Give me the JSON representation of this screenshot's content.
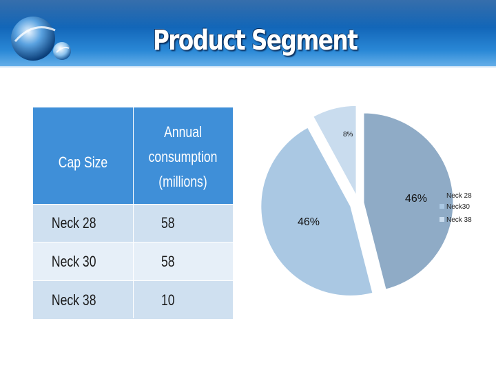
{
  "title": "Product Segment",
  "table": {
    "headers": [
      "Cap Size",
      "Annual consumption (millions)"
    ],
    "rows": [
      [
        "Neck 28",
        "58"
      ],
      [
        "Neck 30",
        "58"
      ],
      [
        "Neck 38",
        "10"
      ]
    ]
  },
  "chart_data": {
    "type": "pie",
    "categories": [
      "Neck 28",
      "Neck30",
      "Neck 38"
    ],
    "values": [
      58,
      58,
      10
    ],
    "percent_labels": [
      "46%",
      "46%",
      "8%"
    ],
    "colors": [
      "#8fabc6",
      "#aac8e3",
      "#c9dcee"
    ],
    "legend": "right"
  },
  "colors": {
    "header_blue": "#1266b8",
    "table_header": "#3f8fd8",
    "row_dark": "#cfe0f0",
    "row_light": "#e6eff8"
  }
}
